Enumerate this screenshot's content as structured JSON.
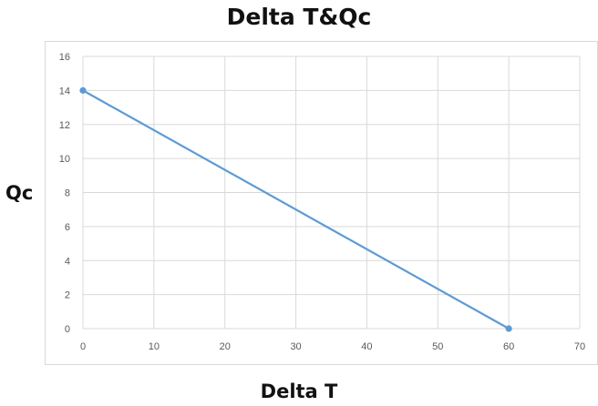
{
  "chart_data": {
    "type": "line",
    "title": "Delta T&Qc",
    "xlabel": "Delta T",
    "ylabel": "Qc",
    "xlim": [
      0,
      70
    ],
    "ylim": [
      0,
      16
    ],
    "xticks": [
      0,
      10,
      20,
      30,
      40,
      50,
      60,
      70
    ],
    "yticks": [
      0,
      2,
      4,
      6,
      8,
      10,
      12,
      14,
      16
    ],
    "grid": true,
    "legend": "none",
    "series": [
      {
        "x": [
          0,
          60
        ],
        "y": [
          14,
          0
        ],
        "color": "#5b9bd5",
        "markers": true
      }
    ]
  }
}
